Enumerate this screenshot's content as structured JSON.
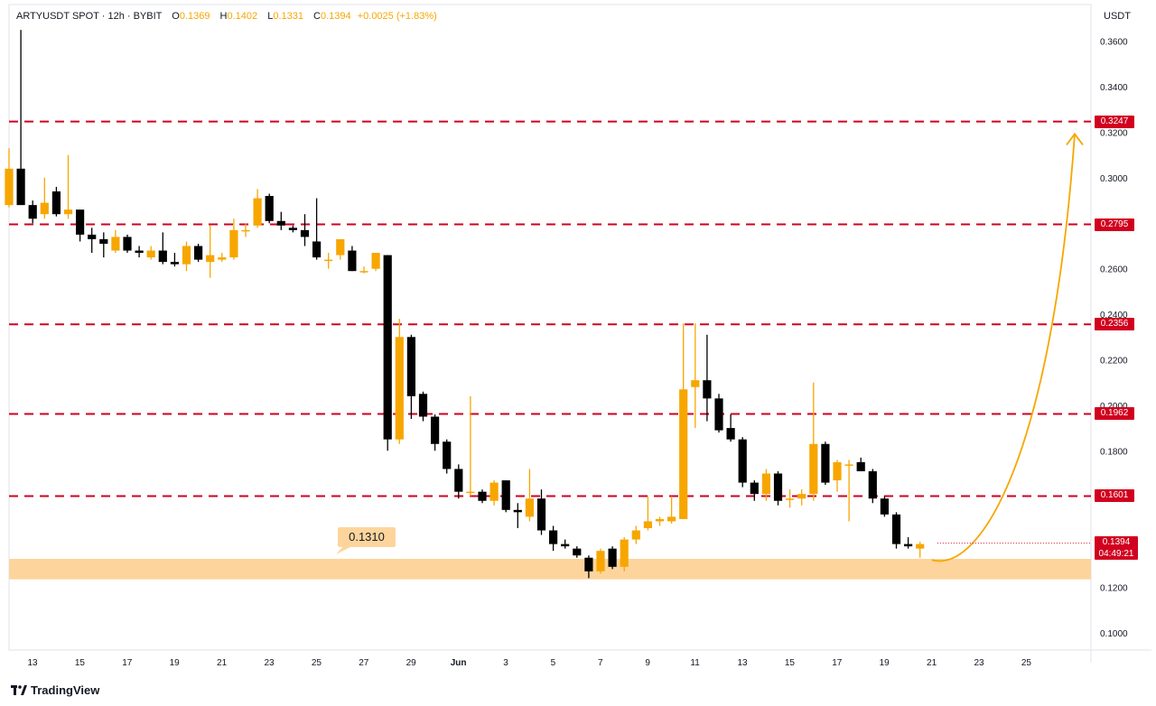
{
  "header": {
    "symbol": "ARTYUSDT SPOT · 12h · BYBIT",
    "open_label": "O",
    "open": "0.1369",
    "high_label": "H",
    "high": "0.1402",
    "low_label": "L",
    "low": "0.1331",
    "close_label": "C",
    "close": "0.1394",
    "change": "+0.0025 (+1.83%)"
  },
  "currency": "USDT",
  "footer": {
    "brand": "TradingView"
  },
  "colors": {
    "bull": "#f7a600",
    "bear": "#000000",
    "level": "#d1001f",
    "zone": "#fdd59c",
    "arrow": "#f7a600",
    "text": "#131722",
    "grid": "#e0e3eb"
  },
  "chart_data": {
    "type": "candlestick",
    "title": "ARTYUSDT SPOT · 12h · BYBIT",
    "y_axis": {
      "unit": "USDT",
      "min": 0.09,
      "max": 0.37,
      "ticks": [
        "0.3600",
        "0.3400",
        "0.3200",
        "0.3000",
        "0.2800",
        "0.2600",
        "0.2400",
        "0.2200",
        "0.2000",
        "0.1800",
        "0.1600",
        "0.1400",
        "0.1200",
        "0.1000"
      ]
    },
    "x_axis": {
      "ticks": [
        "13",
        "15",
        "17",
        "19",
        "21",
        "23",
        "25",
        "27",
        "29",
        "Jun",
        "3",
        "5",
        "7",
        "9",
        "11",
        "13",
        "15",
        "17",
        "19",
        "21",
        "23",
        "25"
      ]
    },
    "candles": [
      {
        "o": 0.288,
        "h": 0.313,
        "l": 0.287,
        "c": 0.304
      },
      {
        "o": 0.304,
        "h": 0.365,
        "l": 0.29,
        "c": 0.288
      },
      {
        "o": 0.288,
        "h": 0.29,
        "l": 0.28,
        "c": 0.282
      },
      {
        "o": 0.284,
        "h": 0.3,
        "l": 0.282,
        "c": 0.289
      },
      {
        "o": 0.294,
        "h": 0.296,
        "l": 0.283,
        "c": 0.284
      },
      {
        "o": 0.284,
        "h": 0.31,
        "l": 0.282,
        "c": 0.286
      },
      {
        "o": 0.286,
        "h": 0.286,
        "l": 0.272,
        "c": 0.275
      },
      {
        "o": 0.275,
        "h": 0.278,
        "l": 0.267,
        "c": 0.273
      },
      {
        "o": 0.273,
        "h": 0.276,
        "l": 0.265,
        "c": 0.271
      },
      {
        "o": 0.268,
        "h": 0.277,
        "l": 0.267,
        "c": 0.274
      },
      {
        "o": 0.274,
        "h": 0.275,
        "l": 0.267,
        "c": 0.268
      },
      {
        "o": 0.268,
        "h": 0.27,
        "l": 0.265,
        "c": 0.267
      },
      {
        "o": 0.265,
        "h": 0.27,
        "l": 0.264,
        "c": 0.268
      },
      {
        "o": 0.268,
        "h": 0.276,
        "l": 0.262,
        "c": 0.263
      },
      {
        "o": 0.263,
        "h": 0.267,
        "l": 0.261,
        "c": 0.262
      },
      {
        "o": 0.262,
        "h": 0.272,
        "l": 0.259,
        "c": 0.27
      },
      {
        "o": 0.27,
        "h": 0.271,
        "l": 0.263,
        "c": 0.264
      },
      {
        "o": 0.263,
        "h": 0.279,
        "l": 0.256,
        "c": 0.266
      },
      {
        "o": 0.264,
        "h": 0.267,
        "l": 0.263,
        "c": 0.265
      },
      {
        "o": 0.265,
        "h": 0.282,
        "l": 0.264,
        "c": 0.277
      },
      {
        "o": 0.277,
        "h": 0.28,
        "l": 0.274,
        "c": 0.277
      },
      {
        "o": 0.279,
        "h": 0.295,
        "l": 0.278,
        "c": 0.291
      },
      {
        "o": 0.292,
        "h": 0.293,
        "l": 0.28,
        "c": 0.281
      },
      {
        "o": 0.281,
        "h": 0.285,
        "l": 0.277,
        "c": 0.279
      },
      {
        "o": 0.278,
        "h": 0.279,
        "l": 0.276,
        "c": 0.277
      },
      {
        "o": 0.277,
        "h": 0.284,
        "l": 0.27,
        "c": 0.274
      },
      {
        "o": 0.272,
        "h": 0.291,
        "l": 0.264,
        "c": 0.265
      },
      {
        "o": 0.264,
        "h": 0.267,
        "l": 0.26,
        "c": 0.264
      },
      {
        "o": 0.266,
        "h": 0.273,
        "l": 0.264,
        "c": 0.273
      },
      {
        "o": 0.268,
        "h": 0.27,
        "l": 0.259,
        "c": 0.259
      },
      {
        "o": 0.259,
        "h": 0.261,
        "l": 0.258,
        "c": 0.259
      },
      {
        "o": 0.26,
        "h": 0.267,
        "l": 0.259,
        "c": 0.267
      },
      {
        "o": 0.266,
        "h": 0.266,
        "l": 0.18,
        "c": 0.185
      },
      {
        "o": 0.185,
        "h": 0.238,
        "l": 0.183,
        "c": 0.23
      },
      {
        "o": 0.23,
        "h": 0.231,
        "l": 0.194,
        "c": 0.204
      },
      {
        "o": 0.205,
        "h": 0.206,
        "l": 0.193,
        "c": 0.195
      },
      {
        "o": 0.195,
        "h": 0.196,
        "l": 0.18,
        "c": 0.183
      },
      {
        "o": 0.184,
        "h": 0.185,
        "l": 0.17,
        "c": 0.172
      },
      {
        "o": 0.172,
        "h": 0.174,
        "l": 0.159,
        "c": 0.162
      },
      {
        "o": 0.162,
        "h": 0.204,
        "l": 0.16,
        "c": 0.162
      },
      {
        "o": 0.162,
        "h": 0.163,
        "l": 0.157,
        "c": 0.158
      },
      {
        "o": 0.158,
        "h": 0.167,
        "l": 0.156,
        "c": 0.166
      },
      {
        "o": 0.167,
        "h": 0.167,
        "l": 0.153,
        "c": 0.154
      },
      {
        "o": 0.154,
        "h": 0.157,
        "l": 0.146,
        "c": 0.153
      },
      {
        "o": 0.151,
        "h": 0.172,
        "l": 0.149,
        "c": 0.159
      },
      {
        "o": 0.159,
        "h": 0.163,
        "l": 0.143,
        "c": 0.145
      },
      {
        "o": 0.145,
        "h": 0.147,
        "l": 0.136,
        "c": 0.139
      },
      {
        "o": 0.139,
        "h": 0.141,
        "l": 0.137,
        "c": 0.138
      },
      {
        "o": 0.137,
        "h": 0.138,
        "l": 0.133,
        "c": 0.134
      },
      {
        "o": 0.133,
        "h": 0.134,
        "l": 0.124,
        "c": 0.127
      },
      {
        "o": 0.127,
        "h": 0.137,
        "l": 0.126,
        "c": 0.136
      },
      {
        "o": 0.137,
        "h": 0.138,
        "l": 0.128,
        "c": 0.129
      },
      {
        "o": 0.129,
        "h": 0.142,
        "l": 0.127,
        "c": 0.141
      },
      {
        "o": 0.141,
        "h": 0.147,
        "l": 0.139,
        "c": 0.145
      },
      {
        "o": 0.146,
        "h": 0.16,
        "l": 0.145,
        "c": 0.149
      },
      {
        "o": 0.149,
        "h": 0.151,
        "l": 0.147,
        "c": 0.15
      },
      {
        "o": 0.149,
        "h": 0.16,
        "l": 0.148,
        "c": 0.151
      },
      {
        "o": 0.15,
        "h": 0.236,
        "l": 0.15,
        "c": 0.207
      },
      {
        "o": 0.208,
        "h": 0.236,
        "l": 0.19,
        "c": 0.211
      },
      {
        "o": 0.211,
        "h": 0.231,
        "l": 0.193,
        "c": 0.203
      },
      {
        "o": 0.203,
        "h": 0.205,
        "l": 0.188,
        "c": 0.189
      },
      {
        "o": 0.19,
        "h": 0.196,
        "l": 0.184,
        "c": 0.185
      },
      {
        "o": 0.185,
        "h": 0.186,
        "l": 0.164,
        "c": 0.166
      },
      {
        "o": 0.166,
        "h": 0.167,
        "l": 0.158,
        "c": 0.161
      },
      {
        "o": 0.161,
        "h": 0.172,
        "l": 0.158,
        "c": 0.17
      },
      {
        "o": 0.17,
        "h": 0.171,
        "l": 0.156,
        "c": 0.158
      },
      {
        "o": 0.159,
        "h": 0.163,
        "l": 0.155,
        "c": 0.159
      },
      {
        "o": 0.159,
        "h": 0.163,
        "l": 0.156,
        "c": 0.161
      },
      {
        "o": 0.161,
        "h": 0.21,
        "l": 0.158,
        "c": 0.183
      },
      {
        "o": 0.183,
        "h": 0.184,
        "l": 0.165,
        "c": 0.166
      },
      {
        "o": 0.167,
        "h": 0.176,
        "l": 0.162,
        "c": 0.175
      },
      {
        "o": 0.174,
        "h": 0.176,
        "l": 0.149,
        "c": 0.174
      },
      {
        "o": 0.175,
        "h": 0.177,
        "l": 0.171,
        "c": 0.171
      },
      {
        "o": 0.171,
        "h": 0.172,
        "l": 0.157,
        "c": 0.159
      },
      {
        "o": 0.159,
        "h": 0.16,
        "l": 0.151,
        "c": 0.152
      },
      {
        "o": 0.152,
        "h": 0.153,
        "l": 0.137,
        "c": 0.139
      },
      {
        "o": 0.139,
        "h": 0.142,
        "l": 0.137,
        "c": 0.138
      },
      {
        "o": 0.137,
        "h": 0.14,
        "l": 0.133,
        "c": 0.139
      }
    ],
    "levels": [
      {
        "value": 0.3247,
        "label": "0.3247"
      },
      {
        "value": 0.2795,
        "label": "0.2795"
      },
      {
        "value": 0.2356,
        "label": "0.2356"
      },
      {
        "value": 0.1962,
        "label": "0.1962"
      },
      {
        "value": 0.1601,
        "label": "0.1601"
      }
    ],
    "support_zone": {
      "from": 0.1235,
      "to": 0.1325,
      "label": "0.1310"
    },
    "last_price": {
      "value": 0.1394,
      "label": "0.1394",
      "countdown": "04:49:21"
    },
    "projection": {
      "type": "curved-arrow",
      "from": {
        "candle": 78,
        "price": 0.132
      },
      "to": {
        "x_label": "25",
        "price": 0.324
      }
    },
    "grid": true
  }
}
